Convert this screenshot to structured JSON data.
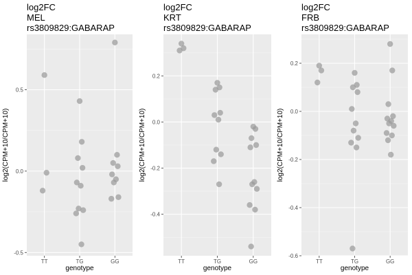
{
  "chart_data": [
    {
      "type": "scatter",
      "title_lines": [
        "log2FC",
        "MEL",
        "rs3809829:GABARAP"
      ],
      "xlabel": "genotype",
      "ylabel": "log2(CPM+10/CPM+10)",
      "categories": [
        "TT",
        "TG",
        "GG"
      ],
      "y_ticks": [
        -0.5,
        0.0,
        0.5
      ],
      "y_tick_labels": [
        "-0.5",
        "0.0",
        "0.5"
      ],
      "ylim": [
        -0.52,
        0.84
      ],
      "grid": true,
      "point_color": "#999999",
      "points": [
        {
          "x": "TT",
          "y": 0.59
        },
        {
          "x": "TT",
          "y": -0.01
        },
        {
          "x": "TT",
          "y": -0.12
        },
        {
          "x": "TG",
          "y": 0.43
        },
        {
          "x": "TG",
          "y": 0.18
        },
        {
          "x": "TG",
          "y": 0.08
        },
        {
          "x": "TG",
          "y": 0.02
        },
        {
          "x": "TG",
          "y": -0.07
        },
        {
          "x": "TG",
          "y": -0.09
        },
        {
          "x": "TG",
          "y": -0.23
        },
        {
          "x": "TG",
          "y": -0.24
        },
        {
          "x": "TG",
          "y": -0.26
        },
        {
          "x": "TG",
          "y": -0.45
        },
        {
          "x": "GG",
          "y": 0.79
        },
        {
          "x": "GG",
          "y": 0.1
        },
        {
          "x": "GG",
          "y": 0.05
        },
        {
          "x": "GG",
          "y": 0.03
        },
        {
          "x": "GG",
          "y": -0.02
        },
        {
          "x": "GG",
          "y": -0.05
        },
        {
          "x": "GG",
          "y": -0.07
        },
        {
          "x": "GG",
          "y": -0.16
        },
        {
          "x": "GG",
          "y": -0.17
        }
      ]
    },
    {
      "type": "scatter",
      "title_lines": [
        "log2FC",
        "KRT",
        "rs3809829:GABARAP"
      ],
      "xlabel": "genotype",
      "ylabel": "log2(CPM+10/CPM+10)",
      "categories": [
        "TT",
        "TG",
        "GG"
      ],
      "y_ticks": [
        -0.4,
        -0.2,
        0.0,
        0.2
      ],
      "y_tick_labels": [
        "-0.4",
        "-0.2",
        "0.0",
        "0.2"
      ],
      "ylim": [
        -0.58,
        0.38
      ],
      "grid": true,
      "point_color": "#999999",
      "points": [
        {
          "x": "TT",
          "y": 0.34
        },
        {
          "x": "TT",
          "y": 0.32
        },
        {
          "x": "TT",
          "y": 0.31
        },
        {
          "x": "TG",
          "y": 0.17
        },
        {
          "x": "TG",
          "y": 0.15
        },
        {
          "x": "TG",
          "y": 0.14
        },
        {
          "x": "TG",
          "y": 0.04
        },
        {
          "x": "TG",
          "y": 0.03
        },
        {
          "x": "TG",
          "y": 0.01
        },
        {
          "x": "TG",
          "y": -0.12
        },
        {
          "x": "TG",
          "y": -0.14
        },
        {
          "x": "TG",
          "y": -0.17
        },
        {
          "x": "TG",
          "y": -0.27
        },
        {
          "x": "GG",
          "y": -0.02
        },
        {
          "x": "GG",
          "y": -0.03
        },
        {
          "x": "GG",
          "y": -0.07
        },
        {
          "x": "GG",
          "y": -0.1
        },
        {
          "x": "GG",
          "y": -0.11
        },
        {
          "x": "GG",
          "y": -0.26
        },
        {
          "x": "GG",
          "y": -0.27
        },
        {
          "x": "GG",
          "y": -0.29
        },
        {
          "x": "GG",
          "y": -0.36
        },
        {
          "x": "GG",
          "y": -0.38
        },
        {
          "x": "GG",
          "y": -0.54
        }
      ]
    },
    {
      "type": "scatter",
      "title_lines": [
        "log2FC",
        "FRB",
        "rs3809829:GABARAP"
      ],
      "xlabel": "genotype",
      "ylabel": "log2(CPM+10/CPM+10)",
      "categories": [
        "TT",
        "TG",
        "GG"
      ],
      "y_ticks": [
        -0.6,
        -0.4,
        -0.2,
        0.0,
        0.2
      ],
      "y_tick_labels": [
        "-0.6",
        "-0.4",
        "-0.2",
        "0.0",
        "0.2"
      ],
      "ylim": [
        -0.6,
        0.32
      ],
      "grid": true,
      "point_color": "#999999",
      "points": [
        {
          "x": "TT",
          "y": 0.19
        },
        {
          "x": "TT",
          "y": 0.17
        },
        {
          "x": "TT",
          "y": 0.12
        },
        {
          "x": "TG",
          "y": 0.16
        },
        {
          "x": "TG",
          "y": 0.11
        },
        {
          "x": "TG",
          "y": 0.1
        },
        {
          "x": "TG",
          "y": 0.08
        },
        {
          "x": "TG",
          "y": 0.01
        },
        {
          "x": "TG",
          "y": -0.05
        },
        {
          "x": "TG",
          "y": -0.08
        },
        {
          "x": "TG",
          "y": -0.11
        },
        {
          "x": "TG",
          "y": -0.13
        },
        {
          "x": "TG",
          "y": -0.15
        },
        {
          "x": "TG",
          "y": -0.57
        },
        {
          "x": "GG",
          "y": 0.28
        },
        {
          "x": "GG",
          "y": 0.17
        },
        {
          "x": "GG",
          "y": 0.03
        },
        {
          "x": "GG",
          "y": -0.02
        },
        {
          "x": "GG",
          "y": -0.03
        },
        {
          "x": "GG",
          "y": -0.04
        },
        {
          "x": "GG",
          "y": -0.05
        },
        {
          "x": "GG",
          "y": -0.06
        },
        {
          "x": "GG",
          "y": -0.09
        },
        {
          "x": "GG",
          "y": -0.1
        },
        {
          "x": "GG",
          "y": -0.12
        },
        {
          "x": "GG",
          "y": -0.18
        }
      ]
    }
  ]
}
